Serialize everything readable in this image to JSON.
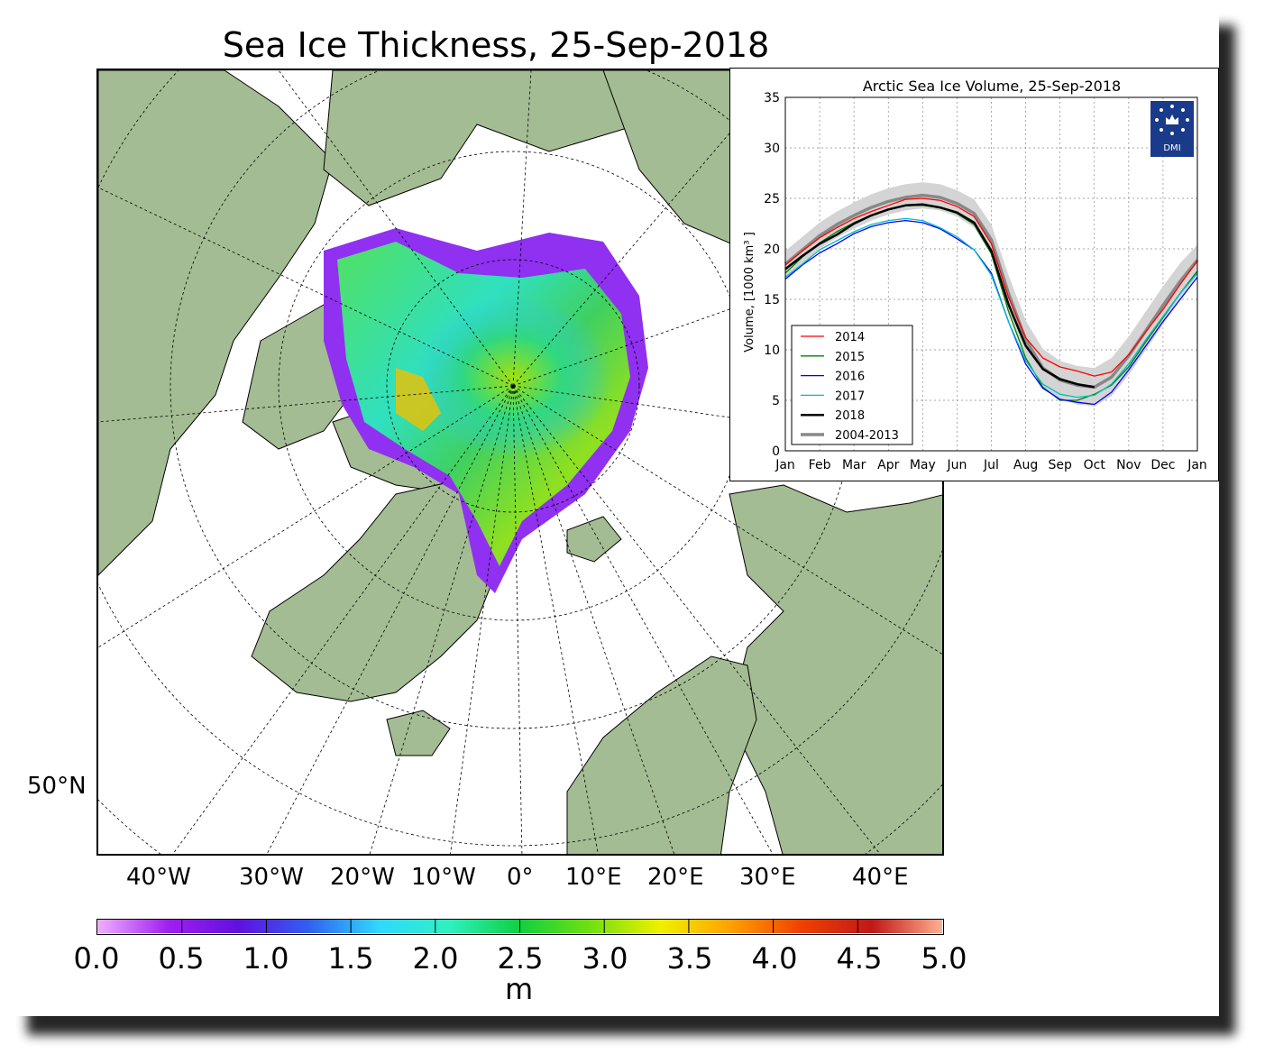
{
  "map": {
    "title": "Sea Ice Thickness, 25-Sep-2018",
    "lon_labels": [
      "40°W",
      "30°W",
      "20°W",
      "10°W",
      "0°",
      "10°E",
      "20°E",
      "30°E",
      "40°E"
    ],
    "lat_label": "50°N",
    "colors": {
      "land": "#a3bc93",
      "ocean": "#ffffff"
    }
  },
  "colorbar": {
    "ticks": [
      "0.0",
      "0.5",
      "1.0",
      "1.5",
      "2.0",
      "2.5",
      "3.0",
      "3.5",
      "4.0",
      "4.5",
      "5.0"
    ],
    "unit": "m",
    "colors": [
      "#f0b0ff",
      "#a020f0",
      "#6010e0",
      "#3060f0",
      "#30d8ff",
      "#30f0c0",
      "#10d040",
      "#70e010",
      "#f0f000",
      "#ffa000",
      "#f04000",
      "#c01818",
      "#ffb090"
    ]
  },
  "chart_data": {
    "type": "line",
    "title": "Arctic Sea Ice Volume, 25-Sep-2018",
    "ylabel": "Volume, [1000 km³ ]",
    "xlabel": "",
    "ylim": [
      0,
      35
    ],
    "yticks": [
      0,
      5,
      10,
      15,
      20,
      25,
      30,
      35
    ],
    "xticks": [
      "Jan",
      "Feb",
      "Mar",
      "Apr",
      "May",
      "Jun",
      "Jul",
      "Aug",
      "Sep",
      "Oct",
      "Nov",
      "Dec",
      "Jan"
    ],
    "grid": true,
    "legend_position": "lower-left",
    "logo_text": "DMI",
    "x": [
      0,
      0.5,
      1,
      1.5,
      2,
      2.5,
      3,
      3.5,
      4,
      4.5,
      5,
      5.5,
      6,
      6.5,
      7,
      7.5,
      8,
      8.5,
      9,
      9.5,
      10,
      10.5,
      11,
      11.5,
      12
    ],
    "series": [
      {
        "name": "2014",
        "color": "#ff0000",
        "values": [
          18.4,
          19.8,
          21.1,
          22.1,
          23.0,
          23.7,
          24.3,
          24.9,
          25.0,
          24.8,
          24.2,
          23.2,
          20.5,
          15.2,
          11.2,
          9.2,
          8.3,
          7.9,
          7.4,
          7.8,
          9.5,
          11.8,
          14.0,
          16.5,
          18.8
        ]
      },
      {
        "name": "2015",
        "color": "#008000",
        "values": [
          17.6,
          19.2,
          20.6,
          21.7,
          22.6,
          23.3,
          23.9,
          24.3,
          24.3,
          24.1,
          23.5,
          22.4,
          19.5,
          13.8,
          9.2,
          6.3,
          5.0,
          5.0,
          5.6,
          6.5,
          8.3,
          10.8,
          13.2,
          15.6,
          17.8
        ]
      },
      {
        "name": "2016",
        "color": "#0000ff",
        "values": [
          17.0,
          18.4,
          19.6,
          20.5,
          21.5,
          22.2,
          22.6,
          22.8,
          22.6,
          22.0,
          21.0,
          19.9,
          17.6,
          12.8,
          8.6,
          6.2,
          5.1,
          4.8,
          4.6,
          5.8,
          8.0,
          10.4,
          12.8,
          15.0,
          17.2
        ]
      },
      {
        "name": "2017",
        "color": "#00bfbf",
        "values": [
          17.2,
          18.5,
          19.9,
          20.8,
          21.7,
          22.4,
          22.8,
          23.0,
          22.8,
          22.1,
          21.2,
          19.9,
          17.4,
          12.8,
          8.9,
          6.6,
          5.6,
          5.3,
          5.5,
          6.6,
          8.6,
          11.0,
          13.3,
          15.6,
          17.6
        ]
      },
      {
        "name": "2018",
        "color": "#000000",
        "values": [
          18.0,
          19.3,
          20.5,
          21.4,
          22.5,
          23.3,
          23.9,
          24.3,
          24.4,
          24.1,
          23.6,
          22.6,
          19.8,
          14.5,
          10.4,
          8.1,
          7.1,
          6.6,
          6.3,
          null,
          null,
          null,
          null,
          null,
          null
        ]
      },
      {
        "name": "2004-2013",
        "color": "#888888",
        "values": [
          18.5,
          19.9,
          21.3,
          22.4,
          23.3,
          24.1,
          24.7,
          25.1,
          25.3,
          25.1,
          24.5,
          23.5,
          20.9,
          15.6,
          11.0,
          8.2,
          7.0,
          6.5,
          6.3,
          7.3,
          9.4,
          11.9,
          14.4,
          16.8,
          18.9
        ]
      }
    ],
    "band": {
      "upper": [
        19.8,
        21.2,
        22.6,
        23.7,
        24.6,
        25.4,
        26.0,
        26.4,
        26.6,
        26.4,
        25.8,
        24.9,
        22.4,
        17.4,
        12.9,
        10.1,
        8.9,
        8.4,
        8.2,
        9.2,
        11.3,
        13.8,
        16.3,
        18.6,
        20.4
      ],
      "lower": [
        17.2,
        18.6,
        20.0,
        21.1,
        22.0,
        22.8,
        23.4,
        23.8,
        24.0,
        23.8,
        23.2,
        22.1,
        19.4,
        13.8,
        9.1,
        6.3,
        5.1,
        4.6,
        4.4,
        5.4,
        7.5,
        10.0,
        12.5,
        15.0,
        17.4
      ],
      "color": "#d4d4d4"
    }
  }
}
